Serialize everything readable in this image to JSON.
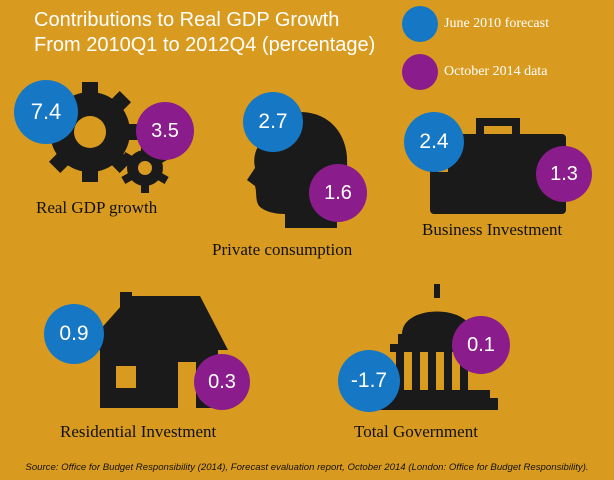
{
  "title_line1": "Contributions to Real GDP Growth",
  "title_line2": "From 2010Q1 to 2012Q4 (percentage)",
  "source": "Source: Office for Budget Responsibility (2014), Forecast evaluation report, October 2014 (London: Office for Budget Responsibility).",
  "colors": {
    "background": "#d99b1f",
    "june_2010": "#1677c4",
    "october_2014": "#8a1d8b",
    "pictogram": "#1a1a1a"
  },
  "legend": [
    {
      "text": "June 2010 forecast",
      "color": "#1677c4"
    },
    {
      "text": "October 2014 data",
      "color": "#8a1d8b"
    }
  ],
  "chart_data": {
    "type": "bar",
    "title": "Contributions to Real GDP Growth From 2010Q1 to 2012Q4 (percentage)",
    "categories": [
      "Real GDP growth",
      "Private consumption",
      "Business Investment",
      "Residential Investment",
      "Total Government"
    ],
    "series": [
      {
        "name": "June 2010 forecast",
        "values": [
          7.4,
          2.7,
          2.4,
          0.9,
          -1.7
        ]
      },
      {
        "name": "October 2014 data",
        "values": [
          3.5,
          1.6,
          1.3,
          0.3,
          0.1
        ]
      }
    ],
    "icons": [
      "gears-icon",
      "head-icon",
      "briefcase-icon",
      "house-icon",
      "capitol-icon"
    ]
  }
}
